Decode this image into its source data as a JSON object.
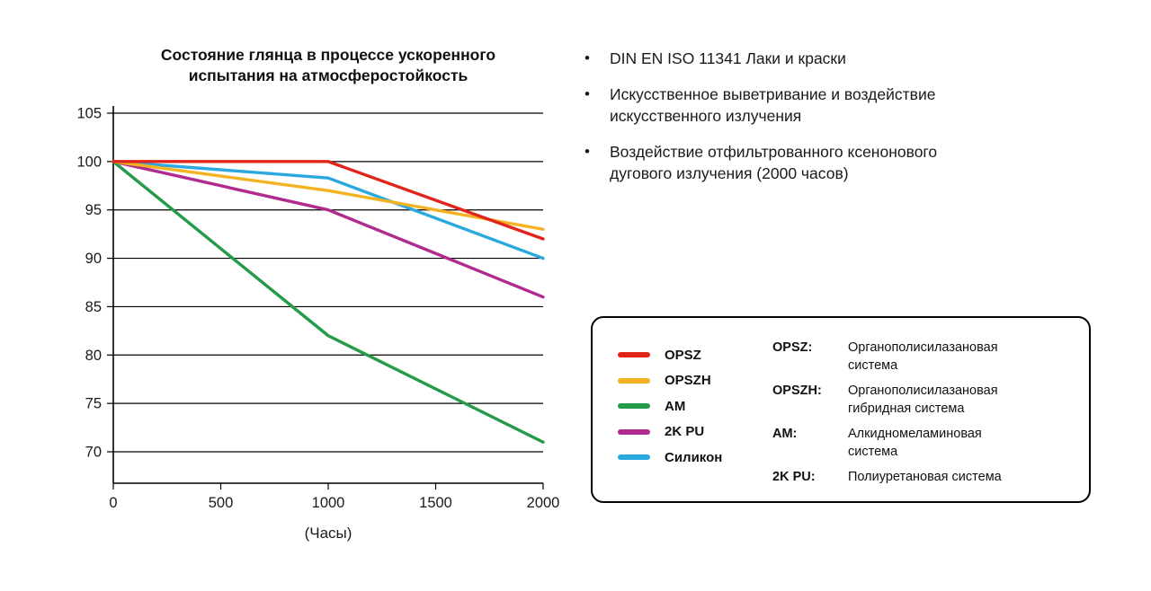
{
  "bullet_marker": "•",
  "chart_data": {
    "type": "line",
    "title": "Состояние глянца в процессе ускоренного\nиспытания на атмосферостойкость",
    "xlabel": "(Часы)",
    "ylabel": "",
    "xlim": [
      0,
      2000
    ],
    "ylim": [
      70,
      105
    ],
    "xticks": [
      0,
      500,
      1000,
      1500,
      2000
    ],
    "yticks": [
      70,
      75,
      80,
      85,
      90,
      95,
      100,
      105
    ],
    "grid": "horizontal-only",
    "legend_position": "separate-box-right",
    "series": [
      {
        "name": "OPSZ",
        "color": "#e2231a",
        "x": [
          0,
          1000,
          2000
        ],
        "y": [
          100,
          100,
          92
        ]
      },
      {
        "name": "OPSZH",
        "color": "#f4b223",
        "x": [
          0,
          1000,
          2000
        ],
        "y": [
          100,
          97,
          93
        ]
      },
      {
        "name": "AM",
        "color": "#239b48",
        "x": [
          0,
          1000,
          2000
        ],
        "y": [
          100,
          82,
          71
        ]
      },
      {
        "name": "2K PU",
        "color": "#b12b8f",
        "x": [
          0,
          1000,
          2000
        ],
        "y": [
          100,
          95,
          86
        ]
      },
      {
        "name": "Силикон",
        "color": "#2aa9e0",
        "x": [
          0,
          1000,
          2000
        ],
        "y": [
          100,
          98.3,
          90
        ]
      }
    ]
  },
  "bullets": [
    "DIN EN ISO 11341 Лаки и краски",
    "Искусственное выветривание и воздействие\nискусственного излучения",
    "Воздействие отфильтрованного ксенонового\nдугового излучения (2000 часов)"
  ],
  "legend": {
    "items": [
      {
        "label": "OPSZ",
        "color": "#e2231a"
      },
      {
        "label": "OPSZH",
        "color": "#f4b223"
      },
      {
        "label": "AM",
        "color": "#239b48"
      },
      {
        "label": "2K PU",
        "color": "#b12b8f"
      },
      {
        "label": "Силикон",
        "color": "#2aa9e0"
      }
    ],
    "definitions": [
      {
        "term": "OPSZ:",
        "text": "Органополисилазановая\nсистема"
      },
      {
        "term": "OPSZH:",
        "text": "Органополисилазановая\nгибридная система"
      },
      {
        "term": "AM:",
        "text": "Алкидномеламиновая\nсистема"
      },
      {
        "term": "2K PU:",
        "text": "Полиуретановая система"
      }
    ]
  }
}
